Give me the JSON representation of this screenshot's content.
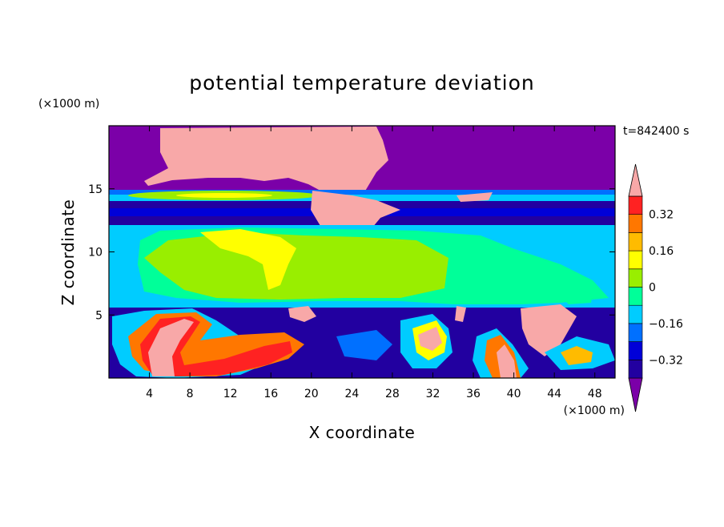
{
  "chart_data": {
    "type": "heatmap",
    "title": "potential temperature deviation",
    "xlabel": "X coordinate",
    "ylabel": "Z coordinate",
    "x_units": "(×1000 m)",
    "y_units": "(×1000 m)",
    "time_label": "t=842400 s",
    "xlim": [
      0,
      50
    ],
    "ylim": [
      0,
      20
    ],
    "x_ticks": [
      "4",
      "8",
      "12",
      "16",
      "20",
      "24",
      "28",
      "32",
      "36",
      "40",
      "44",
      "48"
    ],
    "y_ticks": [
      "5",
      "10",
      "15"
    ],
    "colorbar": {
      "levels": [
        -0.4,
        -0.32,
        -0.24,
        -0.16,
        -0.08,
        0,
        0.08,
        0.16,
        0.24,
        0.32,
        0.4
      ],
      "labels": [
        "0.32",
        "0.16",
        "0",
        "−0.16",
        "−0.32"
      ],
      "colors_low_to_high": [
        "#7b00a8",
        "#2200a0",
        "#0000d8",
        "#0070ff",
        "#00ccff",
        "#00ff99",
        "#99ee00",
        "#ffff00",
        "#ffbb00",
        "#ff7700",
        "#ff2222",
        "#f8a8a8"
      ]
    }
  }
}
